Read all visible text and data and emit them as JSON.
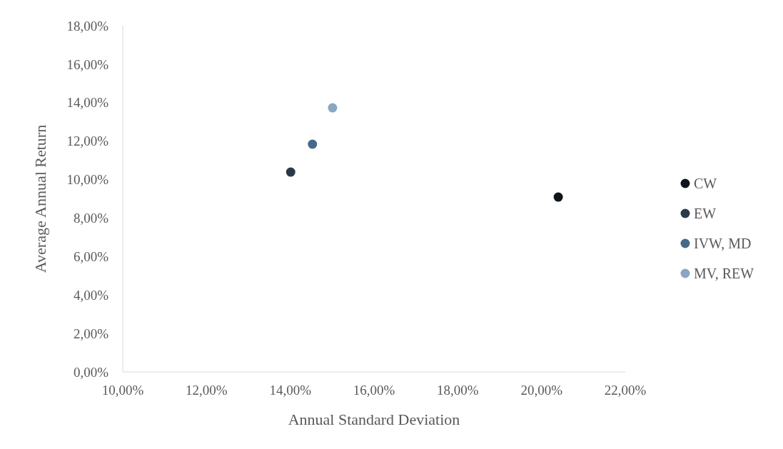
{
  "chart_data": {
    "type": "scatter",
    "xlabel": "Annual Standard Deviation",
    "ylabel": "Average Annual Return",
    "marker": "circle",
    "legend": "right",
    "grid": false,
    "xlim": [
      10,
      22
    ],
    "xticks": [
      {
        "value": 10,
        "label": "10,00%"
      },
      {
        "value": 12,
        "label": "12,00%"
      },
      {
        "value": 14,
        "label": "14,00%"
      },
      {
        "value": 16,
        "label": "16,00%"
      },
      {
        "value": 18,
        "label": "18,00%"
      },
      {
        "value": 20,
        "label": "20,00%"
      },
      {
        "value": 22,
        "label": "22,00%"
      }
    ],
    "ylim": [
      0,
      18
    ],
    "yticks": [
      {
        "value": 0,
        "label": "0,00%"
      },
      {
        "value": 2,
        "label": "2,00%"
      },
      {
        "value": 4,
        "label": "4,00%"
      },
      {
        "value": 6,
        "label": "6,00%"
      },
      {
        "value": 8,
        "label": "8,00%"
      },
      {
        "value": 10,
        "label": "10,00%"
      },
      {
        "value": 12,
        "label": "12,00%"
      },
      {
        "value": 14,
        "label": "14,00%"
      },
      {
        "value": 16,
        "label": "16,00%"
      },
      {
        "value": 18,
        "label": "18,00%"
      }
    ],
    "series": [
      {
        "name": "CW",
        "color": "#0e141b",
        "x": [
          20.4
        ],
        "values": [
          9.09
        ]
      },
      {
        "name": "EW",
        "color": "#2b3a4a",
        "x": [
          14.01
        ],
        "values": [
          10.39
        ]
      },
      {
        "name": "IVW, MD",
        "color": "#46698a",
        "x": [
          14.53
        ],
        "values": [
          11.84
        ]
      },
      {
        "name": "MV, REW",
        "color": "#8aa6c1",
        "x": [
          15.01
        ],
        "values": [
          13.73
        ]
      }
    ]
  }
}
